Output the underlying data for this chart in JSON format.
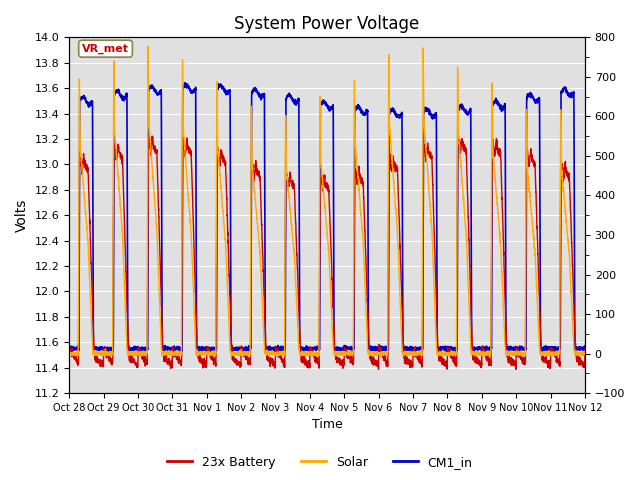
{
  "title": "System Power Voltage",
  "xlabel": "Time",
  "ylabel": "Volts",
  "ylim_left": [
    11.2,
    14.0
  ],
  "ylim_right": [
    -100,
    800
  ],
  "yticks_left": [
    11.2,
    11.4,
    11.6,
    11.8,
    12.0,
    12.2,
    12.4,
    12.6,
    12.8,
    13.0,
    13.2,
    13.4,
    13.6,
    13.8,
    14.0
  ],
  "yticks_right": [
    -100,
    0,
    100,
    200,
    300,
    400,
    500,
    600,
    700,
    800
  ],
  "xtick_labels": [
    "Oct 28",
    "Oct 29",
    "Oct 30",
    "Oct 31",
    "Nov 1",
    "Nov 2",
    "Nov 3",
    "Nov 4",
    "Nov 5",
    "Nov 6",
    "Nov 7",
    "Nov 8",
    "Nov 9",
    "Nov 10",
    "Nov 11",
    "Nov 12"
  ],
  "legend_labels": [
    "23x Battery",
    "Solar",
    "CM1_in"
  ],
  "legend_colors": [
    "#cc0000",
    "#ffaa00",
    "#0000cc"
  ],
  "annotation_text": "VR_met",
  "annotation_color": "#cc0000",
  "bg_color": "#e0e0e0",
  "line_battery_color": "#cc0000",
  "line_solar_color": "#ffaa00",
  "line_cm1_color": "#0000cc",
  "n_days": 15
}
